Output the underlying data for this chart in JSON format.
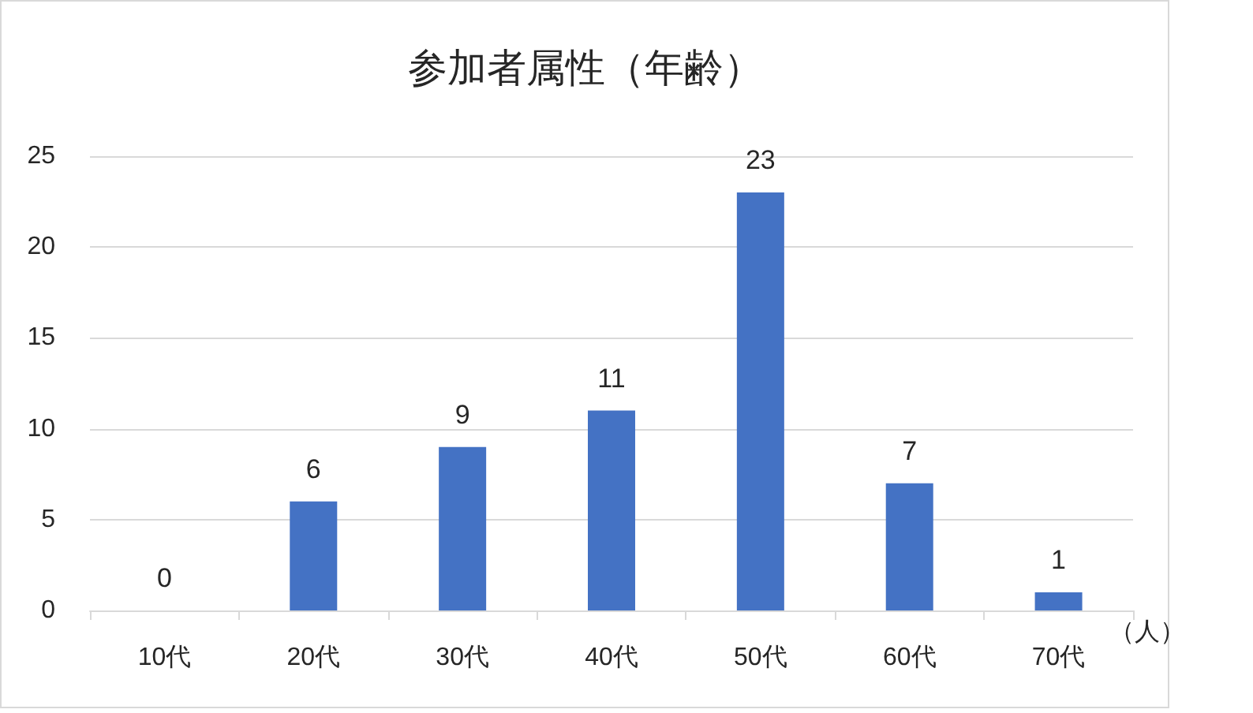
{
  "chart_data": {
    "type": "bar",
    "title": "参加者属性（年齢）",
    "ylabel": "（人）",
    "categories": [
      "10代",
      "20代",
      "30代",
      "40代",
      "50代",
      "60代",
      "70代"
    ],
    "values": [
      0,
      6,
      9,
      11,
      23,
      7,
      1
    ],
    "color": "#4472c4",
    "ylim": [
      0,
      25
    ],
    "yticks": [
      0,
      5,
      10,
      15,
      20,
      25
    ],
    "grid": "y",
    "data_labels": true
  }
}
